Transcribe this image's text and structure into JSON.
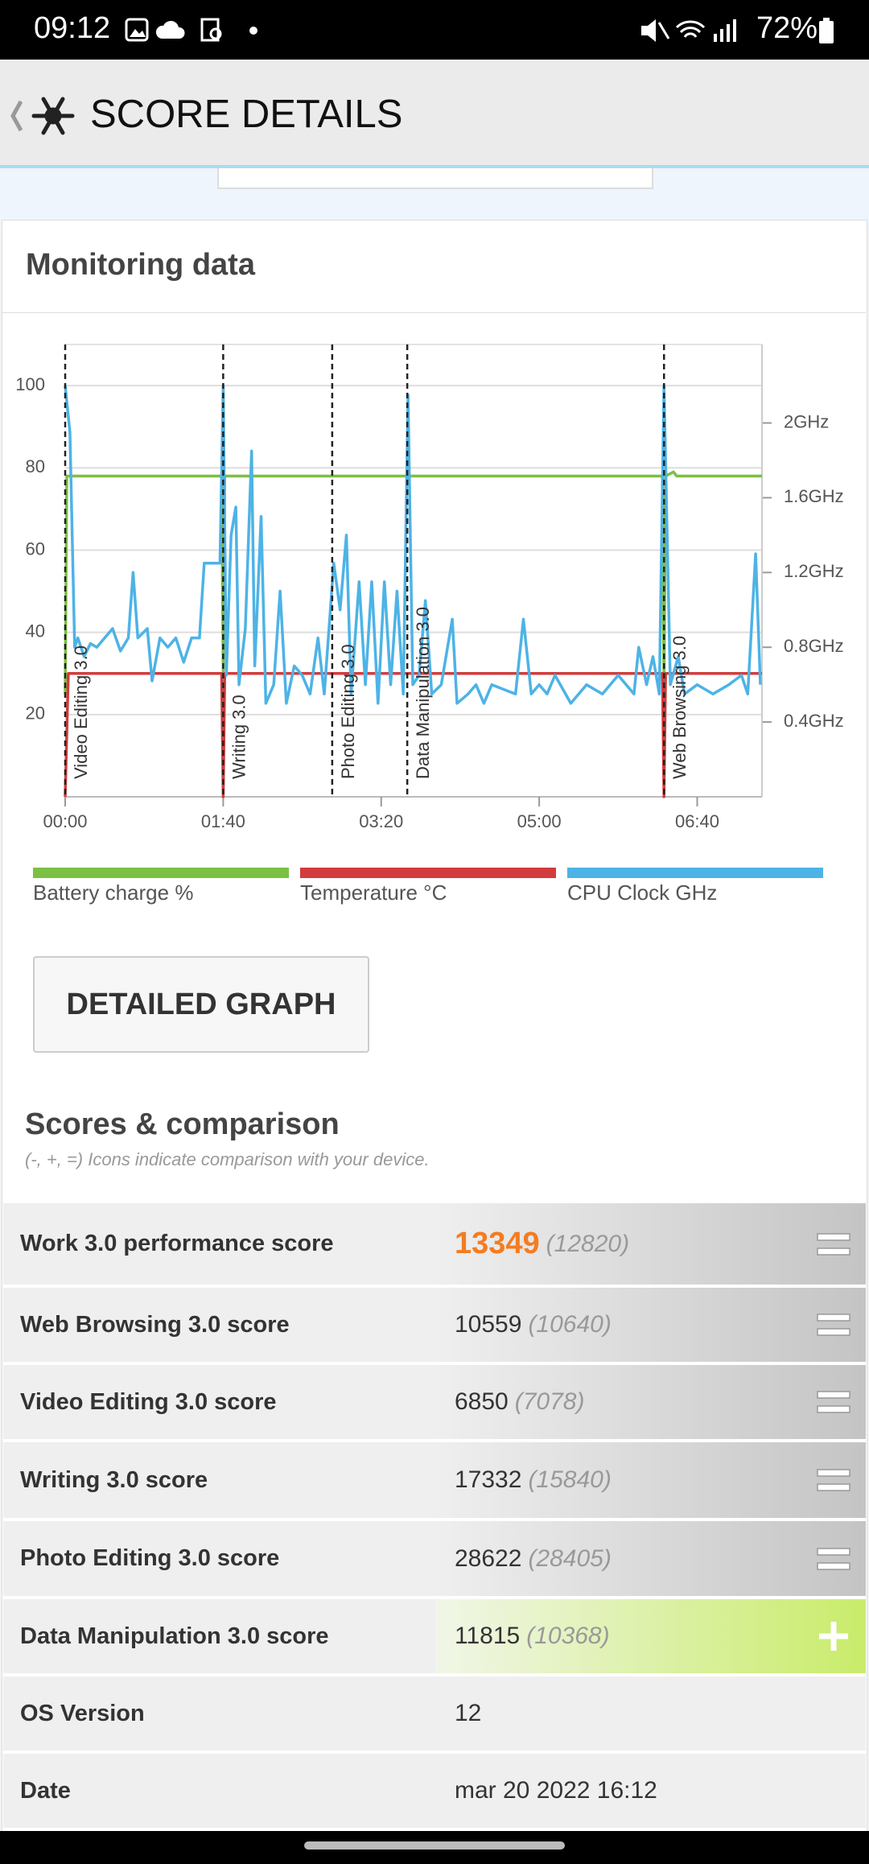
{
  "status_bar": {
    "time": "09:12",
    "battery": "72%"
  },
  "header": {
    "title": "SCORE DETAILS"
  },
  "monitoring": {
    "title": "Monitoring data",
    "button": "DETAILED GRAPH"
  },
  "chart_data": {
    "type": "line",
    "xlim": [
      0,
      441
    ],
    "xticks": [
      {
        "value": 0,
        "label": "00:00"
      },
      {
        "value": 100,
        "label": "01:40"
      },
      {
        "value": 200,
        "label": "03:20"
      },
      {
        "value": 300,
        "label": "05:00"
      },
      {
        "value": 400,
        "label": "06:40"
      }
    ],
    "ylim": [
      0,
      110
    ],
    "yticks": [
      20,
      40,
      60,
      80,
      100
    ],
    "y2lim": [
      0,
      2.42
    ],
    "y2ticks": [
      {
        "value": 0.4,
        "label": "0.4GHz"
      },
      {
        "value": 0.8,
        "label": "0.8GHz"
      },
      {
        "value": 1.2,
        "label": "1.2GHz"
      },
      {
        "value": 1.6,
        "label": "1.6GHz"
      },
      {
        "value": 2,
        "label": "2GHz"
      }
    ],
    "grid": true,
    "markers": [
      {
        "label": "Video Editing 3.0",
        "x": 0
      },
      {
        "label": "Writing 3.0",
        "x": 100
      },
      {
        "label": "Photo Editing 3.0",
        "x": 169
      },
      {
        "label": "Data Manipulation 3.0",
        "x": 216.5
      },
      {
        "label": "Web Browsing 3.0",
        "x": 379
      }
    ],
    "series": [
      {
        "name": "Battery charge %",
        "color": "#7bc043",
        "x": [
          0,
          1,
          3,
          99,
          100,
          101,
          378,
          379,
          380,
          385,
          387,
          441
        ],
        "values": [
          25,
          78,
          78,
          78,
          30,
          78,
          78,
          25,
          78,
          79,
          78,
          78
        ]
      },
      {
        "name": "Temperature °C",
        "color": "#d23c3c",
        "x": [
          0,
          2,
          99,
          100,
          101,
          378,
          379,
          380,
          441
        ],
        "values": [
          0,
          30,
          30,
          0,
          30,
          30,
          0,
          30,
          30
        ]
      },
      {
        "name": "CPU Clock GHz",
        "color": "#4db3e6",
        "axis": "y2",
        "x": [
          0,
          3,
          6,
          8,
          12,
          16,
          20,
          25,
          30,
          35,
          40,
          43,
          46,
          52,
          55,
          60,
          65,
          70,
          75,
          80,
          85,
          88,
          98,
          100,
          102,
          105,
          108,
          110,
          114,
          118,
          120,
          124,
          127,
          132,
          136,
          140,
          145,
          150,
          155,
          160,
          164,
          170,
          174,
          178,
          181,
          186,
          190,
          194,
          198,
          202,
          206,
          210,
          214,
          217,
          220,
          224,
          228,
          232,
          238,
          245,
          248,
          255,
          260,
          265,
          270,
          285,
          290,
          295,
          300,
          305,
          310,
          320,
          330,
          340,
          350,
          360,
          363,
          368,
          372,
          376,
          379,
          383,
          388,
          392,
          400,
          410,
          420,
          428,
          432,
          437,
          440
        ],
        "values": [
          2.2,
          1.95,
          0.8,
          0.85,
          0.75,
          0.82,
          0.8,
          0.85,
          0.9,
          0.78,
          0.85,
          1.2,
          0.85,
          0.9,
          0.62,
          0.85,
          0.8,
          0.85,
          0.72,
          0.85,
          0.85,
          1.25,
          1.25,
          2.2,
          0.65,
          1.4,
          1.55,
          0.6,
          0.9,
          1.85,
          0.7,
          1.5,
          0.5,
          0.6,
          1.1,
          0.5,
          0.7,
          0.65,
          0.55,
          0.85,
          0.55,
          1.25,
          1.0,
          1.4,
          0.55,
          1.15,
          0.6,
          1.15,
          0.5,
          1.15,
          0.6,
          1.1,
          0.55,
          2.15,
          0.6,
          0.65,
          1.05,
          0.55,
          0.6,
          0.95,
          0.5,
          0.55,
          0.6,
          0.5,
          0.6,
          0.55,
          0.95,
          0.55,
          0.6,
          0.55,
          0.65,
          0.5,
          0.6,
          0.55,
          0.65,
          0.55,
          0.8,
          0.6,
          0.75,
          0.55,
          2.2,
          0.6,
          0.75,
          0.55,
          0.6,
          0.55,
          0.6,
          0.65,
          0.55,
          1.3,
          0.6
        ]
      }
    ]
  },
  "scores": {
    "title": "Scores & comparison",
    "subtitle": "(-, +, =) Icons indicate comparison with your device.",
    "rows": [
      {
        "label": "Work 3.0 performance score",
        "score": "13349",
        "reference": "(12820)",
        "comparison": "equal"
      },
      {
        "label": "Web Browsing 3.0 score",
        "score": "10559",
        "reference": "(10640)",
        "comparison": "equal"
      },
      {
        "label": "Video Editing 3.0 score",
        "score": "6850",
        "reference": "(7078)",
        "comparison": "equal"
      },
      {
        "label": "Writing 3.0 score",
        "score": "17332",
        "reference": "(15840)",
        "comparison": "equal"
      },
      {
        "label": "Photo Editing 3.0 score",
        "score": "28622",
        "reference": "(28405)",
        "comparison": "equal"
      },
      {
        "label": "Data Manipulation 3.0 score",
        "score": "11815",
        "reference": "(10368)",
        "comparison": "better"
      }
    ],
    "info": [
      {
        "label": "OS Version",
        "value": "12"
      },
      {
        "label": "Date",
        "value": "mar 20 2022 16:12"
      }
    ]
  }
}
